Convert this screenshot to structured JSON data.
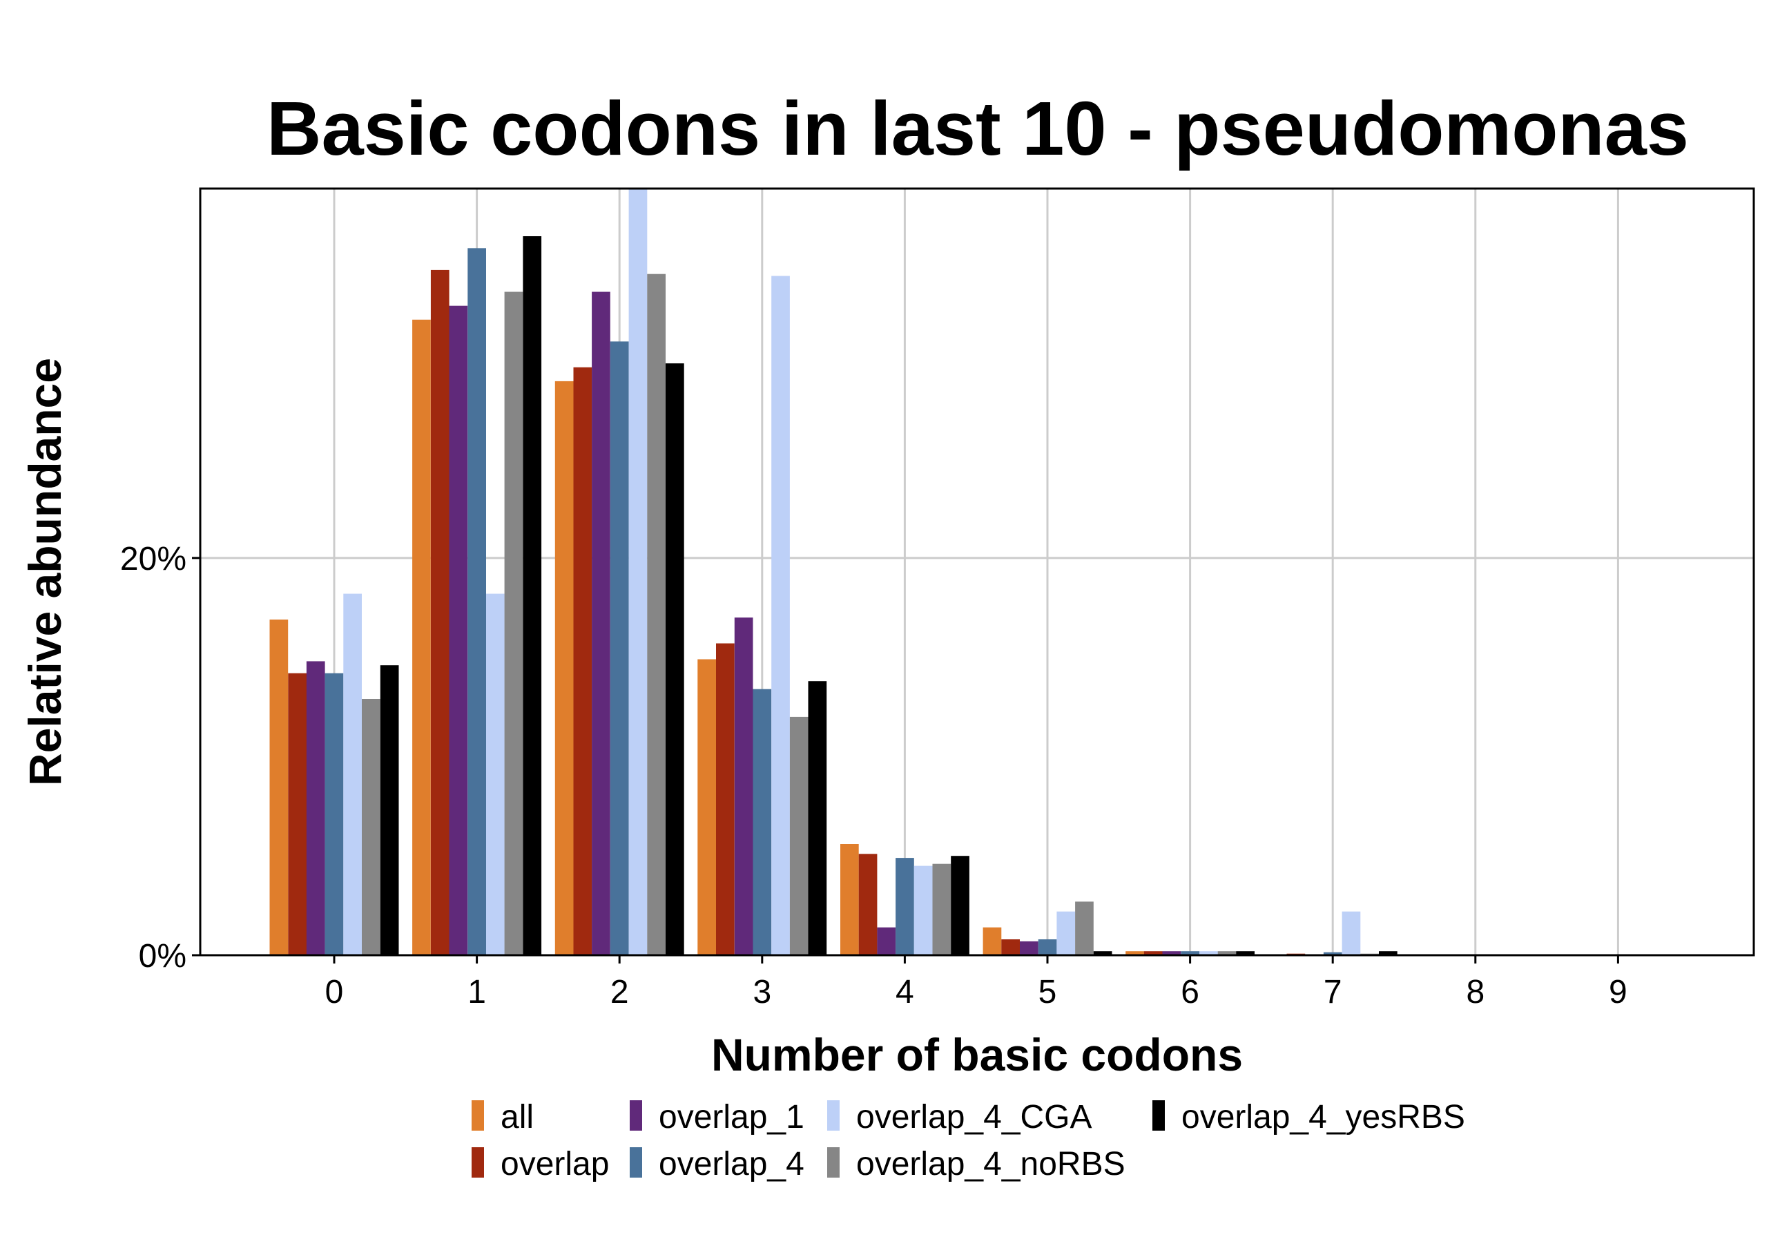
{
  "chart_data": {
    "type": "bar",
    "title": "Basic codons in last 10 - pseudomonas",
    "xlabel": "Number of basic codons",
    "ylabel": "Relative abundance",
    "categories": [
      "0",
      "1",
      "2",
      "3",
      "4",
      "5",
      "6",
      "7",
      "8",
      "9"
    ],
    "y_ticks": [
      {
        "value": 0,
        "label": "0%"
      },
      {
        "value": 20,
        "label": "20%"
      }
    ],
    "ylim": [
      0,
      38.6
    ],
    "grid": true,
    "legend_position": "bottom",
    "series": [
      {
        "name": "all",
        "color": "#E07E2C",
        "values": [
          16.9,
          32.0,
          28.9,
          14.9,
          5.6,
          1.4,
          0.2,
          0.05,
          0.0,
          0.0
        ]
      },
      {
        "name": "overlap",
        "color": "#A0290F",
        "values": [
          14.2,
          34.5,
          29.6,
          15.7,
          5.1,
          0.8,
          0.2,
          0.08,
          0.0,
          0.0
        ]
      },
      {
        "name": "overlap_1",
        "color": "#60297A",
        "values": [
          14.8,
          32.7,
          33.4,
          17.0,
          1.4,
          0.7,
          0.2,
          0.05,
          0.0,
          0.0
        ]
      },
      {
        "name": "overlap_4",
        "color": "#49729A",
        "values": [
          14.2,
          35.6,
          30.9,
          13.4,
          4.9,
          0.8,
          0.2,
          0.15,
          0.0,
          0.0
        ]
      },
      {
        "name": "overlap_4_CGA",
        "color": "#BDD0F7",
        "values": [
          18.2,
          18.2,
          38.6,
          34.2,
          4.5,
          2.2,
          0.2,
          2.2,
          0.0,
          0.0
        ]
      },
      {
        "name": "overlap_4_noRBS",
        "color": "#868686",
        "values": [
          12.9,
          33.4,
          34.3,
          12.0,
          4.6,
          2.7,
          0.2,
          0.08,
          0.0,
          0.0
        ]
      },
      {
        "name": "overlap_4_yesRBS",
        "color": "#000000",
        "values": [
          14.6,
          36.2,
          29.8,
          13.8,
          5.0,
          0.2,
          0.2,
          0.2,
          0.0,
          0.0
        ]
      }
    ]
  }
}
